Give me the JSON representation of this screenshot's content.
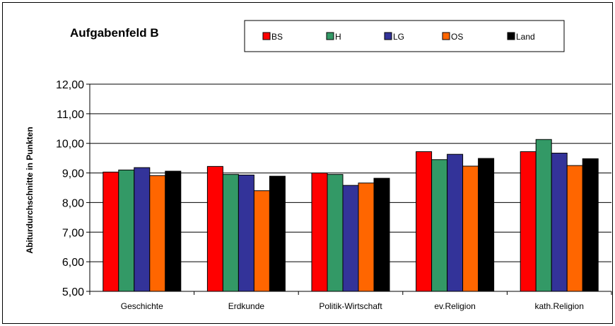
{
  "chart_data": {
    "type": "bar",
    "title": "Aufgabenfeld B",
    "ylabel": "Abiturdurchschnitte in Punkten",
    "xlabel": "",
    "ylim": [
      5,
      12
    ],
    "yticks": [
      "5,00",
      "6,00",
      "7,00",
      "8,00",
      "9,00",
      "10,00",
      "11,00",
      "12,00"
    ],
    "grid": true,
    "legend_position": "top",
    "categories": [
      "Geschichte",
      "Erdkunde",
      "Politik-Wirtschaft",
      "ev.Religion",
      "kath.Religion"
    ],
    "series": [
      {
        "name": "BS",
        "color": "#ff0000",
        "values": [
          9.03,
          9.22,
          9.0,
          9.72,
          9.72
        ]
      },
      {
        "name": "H",
        "color": "#339966",
        "values": [
          9.1,
          8.95,
          8.95,
          9.45,
          10.13
        ]
      },
      {
        "name": "LG",
        "color": "#333399",
        "values": [
          9.18,
          8.93,
          8.58,
          9.63,
          9.67
        ]
      },
      {
        "name": "OS",
        "color": "#ff6600",
        "values": [
          8.91,
          8.4,
          8.66,
          9.23,
          9.25
        ]
      },
      {
        "name": "Land",
        "color": "#000000",
        "values": [
          9.06,
          8.89,
          8.82,
          9.49,
          9.48
        ]
      }
    ]
  }
}
